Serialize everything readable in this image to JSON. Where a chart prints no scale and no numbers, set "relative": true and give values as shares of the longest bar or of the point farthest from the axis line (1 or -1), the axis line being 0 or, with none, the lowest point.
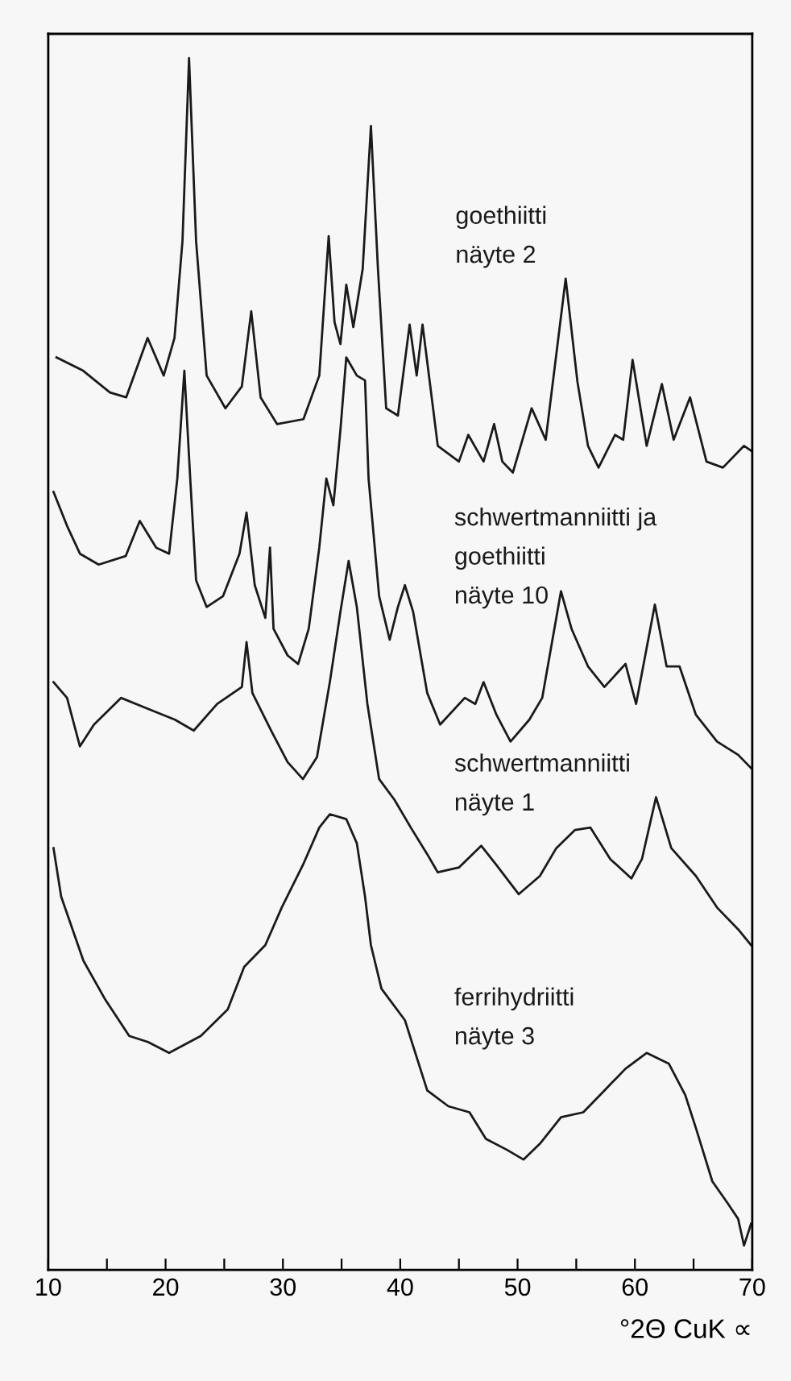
{
  "chart_data": {
    "type": "line",
    "relative": true,
    "xlabel": "°2Θ CuK ∝",
    "xlim": [
      10,
      70
    ],
    "xticks": [
      10,
      {
        "value": 15,
        "label": null
      },
      20,
      {
        "value": 25,
        "label": null
      },
      30,
      {
        "value": 35,
        "label": null
      },
      40,
      {
        "value": 45,
        "label": null
      },
      50,
      {
        "value": 55,
        "label": null
      },
      60,
      {
        "value": 65,
        "label": null
      },
      70
    ],
    "tick_labels": "x",
    "grid": false,
    "legend": false,
    "marker": "none",
    "line_style": "solid",
    "series": [
      {
        "name": "goethiitti\nnäyte 2",
        "color": "#1a1a1a",
        "x": [
          10.7,
          12.97,
          15.26,
          16.64,
          18.47,
          19.84,
          20.76,
          21.44,
          22.0,
          22.6,
          23.5,
          25.1,
          26.5,
          27.3,
          28.1,
          29.5,
          31.75,
          33.1,
          33.9,
          34.4,
          34.9,
          35.4,
          36.0,
          36.8,
          37.5,
          38.1,
          38.8,
          39.8,
          40.8,
          41.4,
          41.9,
          43.2,
          45.0,
          45.8,
          47.1,
          48.0,
          48.7,
          49.6,
          51.2,
          52.4,
          54.1,
          55.1,
          56.0,
          56.9,
          58.3,
          59.0,
          59.8,
          61.0,
          62.3,
          63.3,
          64.7,
          66.1,
          67.5,
          69.3,
          69.9
        ],
        "values": [
          0.753,
          0.742,
          0.724,
          0.72,
          0.769,
          0.738,
          0.769,
          0.849,
          1,
          0.849,
          0.738,
          0.711,
          0.729,
          0.791,
          0.72,
          0.698,
          0.702,
          0.738,
          0.853,
          0.782,
          0.764,
          0.813,
          0.778,
          0.826,
          0.944,
          0.826,
          0.711,
          0.705,
          0.78,
          0.738,
          0.78,
          0.68,
          0.667,
          0.689,
          0.667,
          0.698,
          0.667,
          0.658,
          0.711,
          0.685,
          0.818,
          0.733,
          0.68,
          0.662,
          0.689,
          0.685,
          0.751,
          0.68,
          0.731,
          0.685,
          0.72,
          0.667,
          0.662,
          0.68,
          0.676
        ]
      },
      {
        "name": "schwertmanniitti ja\ngoethiitti\nnäyte 10",
        "color": "#1a1a1a",
        "x": [
          10.45,
          11.6,
          12.7,
          14.3,
          16.6,
          17.8,
          19.2,
          20.3,
          21.0,
          21.6,
          22.1,
          22.6,
          23.5,
          24.9,
          26.3,
          26.9,
          27.6,
          28.5,
          28.9,
          29.2,
          30.4,
          31.3,
          32.2,
          33.1,
          33.7,
          34.3,
          34.9,
          35.4,
          36.3,
          37.0,
          37.3,
          38.2,
          39.1,
          39.8,
          40.4,
          41.1,
          42.3,
          43.4,
          45.5,
          46.4,
          47.1,
          48.2,
          49.4,
          51.0,
          52.1,
          53.7,
          54.6,
          56.0,
          57.4,
          59.2,
          60.1,
          61.7,
          62.7,
          63.8,
          65.2,
          67.0,
          68.8,
          69.9
        ],
        "values": [
          0.642,
          0.614,
          0.591,
          0.582,
          0.589,
          0.618,
          0.596,
          0.591,
          0.653,
          0.742,
          0.653,
          0.569,
          0.547,
          0.556,
          0.591,
          0.625,
          0.565,
          0.538,
          0.596,
          0.529,
          0.507,
          0.5,
          0.529,
          0.596,
          0.653,
          0.631,
          0.693,
          0.753,
          0.738,
          0.734,
          0.653,
          0.556,
          0.52,
          0.547,
          0.565,
          0.543,
          0.476,
          0.45,
          0.472,
          0.467,
          0.485,
          0.458,
          0.436,
          0.454,
          0.472,
          0.56,
          0.529,
          0.498,
          0.481,
          0.5,
          0.467,
          0.549,
          0.498,
          0.498,
          0.458,
          0.436,
          0.425,
          0.414
        ]
      },
      {
        "name": "schwertmanniitti\nnäyte 1",
        "color": "#1a1a1a",
        "x": [
          10.45,
          11.6,
          12.7,
          13.9,
          16.2,
          18.5,
          20.8,
          22.4,
          24.4,
          26.5,
          26.9,
          27.4,
          29.0,
          30.4,
          31.7,
          32.9,
          34.0,
          34.9,
          35.6,
          36.3,
          37.2,
          38.2,
          39.5,
          40.9,
          42.3,
          43.2,
          45.0,
          46.9,
          48.2,
          50.1,
          51.9,
          53.3,
          54.9,
          56.2,
          57.9,
          59.7,
          60.6,
          61.8,
          63.1,
          65.2,
          67.0,
          68.8,
          69.9
        ],
        "values": [
          0.485,
          0.472,
          0.432,
          0.45,
          0.472,
          0.463,
          0.454,
          0.445,
          0.467,
          0.481,
          0.518,
          0.476,
          0.445,
          0.419,
          0.405,
          0.423,
          0.485,
          0.543,
          0.585,
          0.547,
          0.467,
          0.405,
          0.388,
          0.365,
          0.343,
          0.328,
          0.332,
          0.35,
          0.334,
          0.31,
          0.325,
          0.348,
          0.363,
          0.365,
          0.339,
          0.323,
          0.339,
          0.39,
          0.348,
          0.325,
          0.299,
          0.281,
          0.268
        ]
      },
      {
        "name": "ferrihydriitti\nnäyte 3",
        "color": "#1a1a1a",
        "x": [
          10.45,
          11.1,
          13.0,
          14.8,
          16.9,
          18.5,
          20.3,
          23.0,
          25.3,
          26.7,
          28.5,
          29.9,
          31.7,
          33.1,
          34.0,
          35.4,
          36.3,
          37.0,
          37.5,
          38.4,
          40.4,
          42.3,
          44.1,
          45.9,
          47.3,
          49.1,
          50.5,
          51.9,
          53.7,
          55.6,
          57.4,
          59.2,
          61.0,
          62.9,
          64.3,
          65.2,
          66.6,
          67.9,
          68.8,
          69.3,
          69.9
        ],
        "values": [
          0.348,
          0.308,
          0.255,
          0.224,
          0.193,
          0.188,
          0.179,
          0.193,
          0.215,
          0.25,
          0.268,
          0.299,
          0.334,
          0.365,
          0.376,
          0.372,
          0.352,
          0.308,
          0.268,
          0.232,
          0.206,
          0.148,
          0.135,
          0.13,
          0.108,
          0.099,
          0.091,
          0.104,
          0.126,
          0.13,
          0.148,
          0.166,
          0.179,
          0.17,
          0.144,
          0.117,
          0.073,
          0.055,
          0.042,
          0.02,
          0.038
        ]
      }
    ]
  }
}
